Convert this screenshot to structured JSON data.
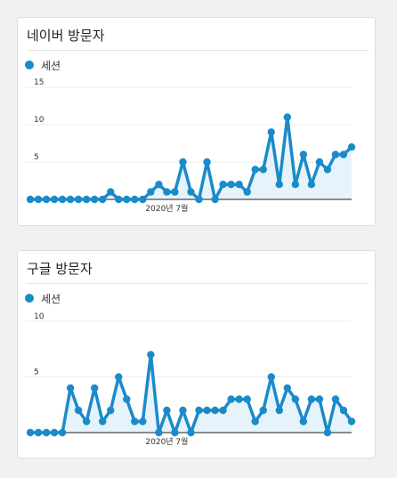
{
  "colors": {
    "series": "#1a8bc9",
    "area": "#e6f3fb",
    "grid": "#ececec",
    "axis": "#222222"
  },
  "cards": [
    {
      "title": "네이버 방문자",
      "legend_label": "세션",
      "x_tick_label": "2020년 7월"
    },
    {
      "title": "구글 방문자",
      "legend_label": "세션",
      "x_tick_label": "2020년 7월"
    }
  ],
  "chart_data": [
    {
      "type": "area",
      "title": "네이버 방문자",
      "series": [
        {
          "name": "세션",
          "values": [
            0,
            0,
            0,
            0,
            0,
            0,
            0,
            0,
            0,
            0,
            1,
            0,
            0,
            0,
            0,
            1,
            2,
            1,
            1,
            5,
            1,
            0,
            5,
            0,
            2,
            2,
            2,
            1,
            4,
            4,
            9,
            2,
            11,
            2,
            6,
            2,
            5,
            4,
            6,
            6,
            7
          ]
        }
      ],
      "y_ticks": [
        5,
        10,
        15
      ],
      "ylim": [
        0,
        15
      ],
      "x_tick_label": "2020년 7월",
      "grid": true
    },
    {
      "type": "area",
      "title": "구글 방문자",
      "series": [
        {
          "name": "세션",
          "values": [
            0,
            0,
            0,
            0,
            0,
            4,
            2,
            1,
            4,
            1,
            2,
            5,
            3,
            1,
            1,
            7,
            0,
            2,
            0,
            2,
            0,
            2,
            2,
            2,
            2,
            3,
            3,
            3,
            1,
            2,
            5,
            2,
            4,
            3,
            1,
            3,
            3,
            0,
            3,
            2,
            1
          ]
        }
      ],
      "y_ticks": [
        5,
        10
      ],
      "ylim": [
        0,
        10
      ],
      "x_tick_label": "2020년 7월",
      "grid": true
    }
  ]
}
